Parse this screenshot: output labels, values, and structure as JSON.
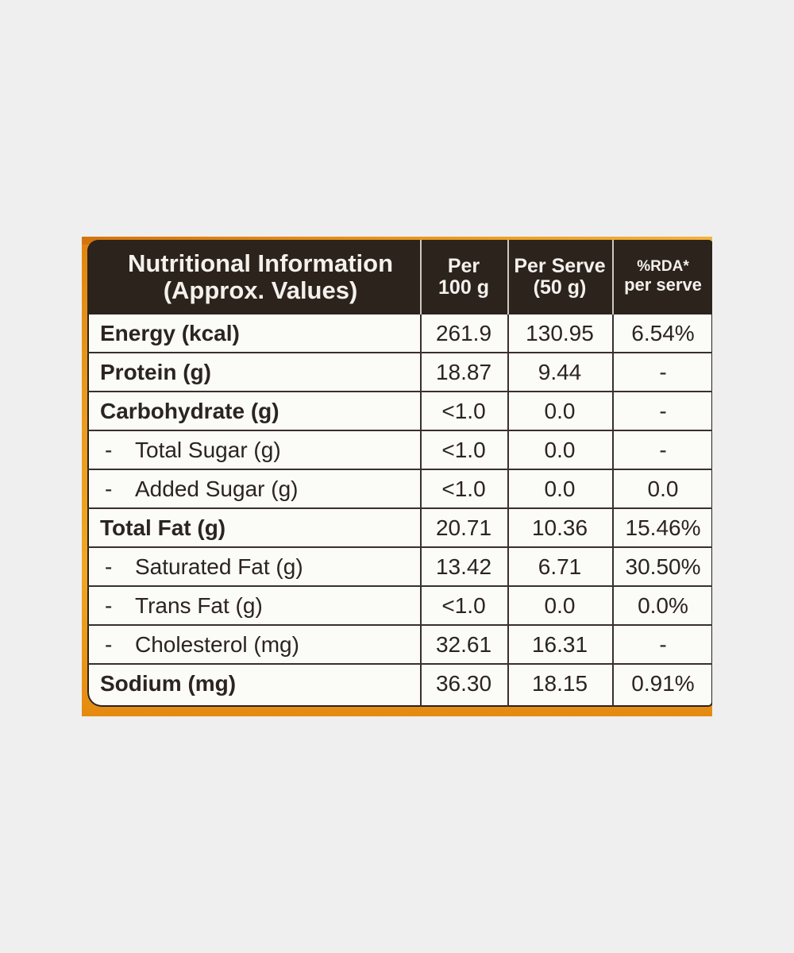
{
  "header": {
    "title_line1": "Nutritional Information",
    "title_line2": "(Approx. Values)",
    "per100_line1": "Per",
    "per100_line2": "100 g",
    "serve_line1": "Per Serve",
    "serve_line2": "(50 g)",
    "rda_line1": "%RDA*",
    "rda_line2": "per serve"
  },
  "rows": [
    {
      "name": "Energy (kcal)",
      "dash": "",
      "per100": "261.9",
      "serve": "130.95",
      "rda": "6.54%"
    },
    {
      "name": "Protein (g)",
      "dash": "",
      "per100": "18.87",
      "serve": "9.44",
      "rda": "-"
    },
    {
      "name": "Carbohydrate (g)",
      "dash": "",
      "per100": "<1.0",
      "serve": "0.0",
      "rda": "-"
    },
    {
      "name": "Total Sugar (g)",
      "dash": "-",
      "per100": "<1.0",
      "serve": "0.0",
      "rda": "-"
    },
    {
      "name": "Added Sugar (g)",
      "dash": "-",
      "per100": "<1.0",
      "serve": "0.0",
      "rda": "0.0"
    },
    {
      "name": "Total Fat (g)",
      "dash": "",
      "per100": "20.71",
      "serve": "10.36",
      "rda": "15.46%"
    },
    {
      "name": "Saturated Fat (g)",
      "dash": "-",
      "per100": "13.42",
      "serve": "6.71",
      "rda": "30.50%"
    },
    {
      "name": "Trans Fat (g)",
      "dash": "-",
      "per100": "<1.0",
      "serve": "0.0",
      "rda": "0.0%"
    },
    {
      "name": "Cholesterol (mg)",
      "dash": "-",
      "per100": "32.61",
      "serve": "16.31",
      "rda": "-"
    },
    {
      "name": "Sodium (mg)",
      "dash": "",
      "per100": "36.30",
      "serve": "18.15",
      "rda": "0.91%"
    }
  ],
  "colors": {
    "background": "#efefef",
    "package_orange": "#e99a1f",
    "header_band": "#2c231d",
    "label_white": "#fbfbf8",
    "text_dark": "#2b2420"
  }
}
